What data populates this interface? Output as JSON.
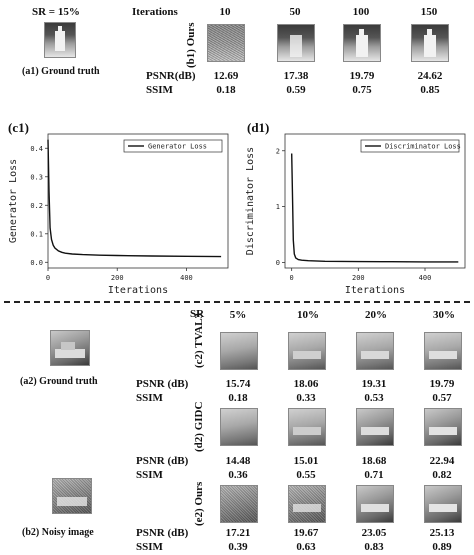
{
  "top": {
    "sr_label": "SR = 15%",
    "ground_truth_caption": "(a1) Ground truth",
    "iterations_label": "Iterations",
    "iterations": [
      "10",
      "50",
      "100",
      "150"
    ],
    "row_label": "(b1) Ours",
    "psnr_label": "PSNR(dB)",
    "ssim_label": "SSIM",
    "psnr": [
      "12.69",
      "17.38",
      "19.79",
      "24.62"
    ],
    "ssim": [
      "0.18",
      "0.59",
      "0.75",
      "0.85"
    ]
  },
  "charts": {
    "gen_panel": "(c1)",
    "disc_panel": "(d1)"
  },
  "chart_data": [
    {
      "type": "line",
      "ylabel": "Generator Loss",
      "xlabel": "Iterations",
      "xlim": [
        0,
        520
      ],
      "ylim": [
        -0.02,
        0.45
      ],
      "xticks": [
        0,
        200,
        400
      ],
      "yticks": [
        0.0,
        0.1,
        0.2,
        0.3,
        0.4
      ],
      "legend": "top-right",
      "series": [
        {
          "name": "Generator Loss",
          "x": [
            0,
            3,
            6,
            10,
            15,
            20,
            30,
            40,
            50,
            70,
            100,
            150,
            200,
            300,
            400,
            500
          ],
          "y": [
            0.43,
            0.25,
            0.12,
            0.08,
            0.06,
            0.05,
            0.04,
            0.035,
            0.032,
            0.029,
            0.027,
            0.025,
            0.024,
            0.022,
            0.021,
            0.02
          ]
        }
      ]
    },
    {
      "type": "line",
      "ylabel": "Discriminator Loss",
      "xlabel": "Iterations",
      "xlim": [
        -20,
        520
      ],
      "ylim": [
        -0.1,
        2.3
      ],
      "xticks": [
        0,
        200,
        400
      ],
      "yticks": [
        0,
        1,
        2
      ],
      "legend": "top-right",
      "series": [
        {
          "name": "Discriminator Loss",
          "x": [
            0,
            3,
            5,
            8,
            12,
            20,
            30,
            50,
            100,
            200,
            300,
            400,
            500
          ],
          "y": [
            1.95,
            1.0,
            0.4,
            0.15,
            0.08,
            0.05,
            0.04,
            0.03,
            0.02,
            0.015,
            0.012,
            0.01,
            0.01
          ]
        }
      ]
    }
  ],
  "bottom": {
    "sr_label": "SR",
    "sr_values": [
      "5%",
      "10%",
      "20%",
      "30%"
    ],
    "gt_caption": "(a2) Ground truth",
    "noisy_caption": "(b2) Noisy image",
    "rows": [
      {
        "label": "(c2) TVAL3",
        "psnr_label": "PSNR (dB)",
        "ssim_label": "SSIM",
        "psnr": [
          "15.74",
          "18.06",
          "19.31",
          "19.79"
        ],
        "ssim": [
          "0.18",
          "0.33",
          "0.53",
          "0.57"
        ]
      },
      {
        "label": "(d2) GIDC",
        "psnr_label": "PSNR (dB)",
        "ssim_label": "SSIM",
        "psnr": [
          "14.48",
          "15.01",
          "18.68",
          "22.94"
        ],
        "ssim": [
          "0.36",
          "0.55",
          "0.71",
          "0.82"
        ]
      },
      {
        "label": "(e2) Ours",
        "psnr_label": "PSNR (dB)",
        "ssim_label": "SSIM",
        "psnr": [
          "17.21",
          "19.67",
          "23.05",
          "25.13"
        ],
        "ssim": [
          "0.39",
          "0.63",
          "0.83",
          "0.89"
        ]
      }
    ]
  }
}
